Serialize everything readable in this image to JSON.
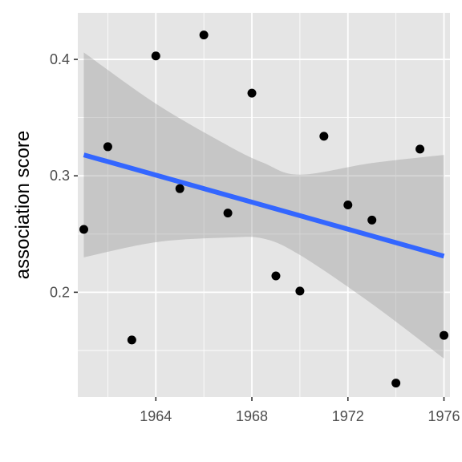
{
  "chart_data": {
    "type": "scatter",
    "title": "",
    "xlabel": "",
    "ylabel": "association score",
    "xlim": [
      1960.75,
      1976.25
    ],
    "ylim": [
      0.11,
      0.44
    ],
    "x_ticks": [
      1964,
      1968,
      1972,
      1976
    ],
    "x_tick_labels": [
      "1964",
      "1968",
      "1972",
      "1976"
    ],
    "y_ticks": [
      0.2,
      0.3,
      0.4
    ],
    "y_tick_labels": [
      "0.2",
      "0.3",
      "0.4"
    ],
    "grid": true,
    "points": [
      {
        "x": 1961,
        "y": 0.254
      },
      {
        "x": 1962,
        "y": 0.325
      },
      {
        "x": 1963,
        "y": 0.159
      },
      {
        "x": 1964,
        "y": 0.403
      },
      {
        "x": 1965,
        "y": 0.289
      },
      {
        "x": 1966,
        "y": 0.421
      },
      {
        "x": 1967,
        "y": 0.268
      },
      {
        "x": 1968,
        "y": 0.371
      },
      {
        "x": 1969,
        "y": 0.214
      },
      {
        "x": 1970,
        "y": 0.201
      },
      {
        "x": 1971,
        "y": 0.334
      },
      {
        "x": 1972,
        "y": 0.275
      },
      {
        "x": 1973,
        "y": 0.262
      },
      {
        "x": 1974,
        "y": 0.122
      },
      {
        "x": 1975,
        "y": 0.323
      },
      {
        "x": 1976,
        "y": 0.163
      }
    ],
    "trend_line": {
      "x": [
        1961,
        1976
      ],
      "y": [
        0.318,
        0.231
      ]
    },
    "confidence_band": [
      {
        "x": 1961,
        "lower": 0.23,
        "upper": 0.406
      },
      {
        "x": 1964,
        "lower": 0.243,
        "upper": 0.362
      },
      {
        "x": 1967,
        "lower": 0.247,
        "upper": 0.326
      },
      {
        "x": 1968.5,
        "lower": 0.246,
        "upper": 0.311
      },
      {
        "x": 1970,
        "lower": 0.232,
        "upper": 0.301
      },
      {
        "x": 1973,
        "lower": 0.19,
        "upper": 0.311
      },
      {
        "x": 1976,
        "lower": 0.143,
        "upper": 0.318
      }
    ],
    "colors": {
      "panel_bg": "#e5e5e5",
      "grid": "#ffffff",
      "points": "#000000",
      "trend_line": "#3366ff",
      "confidence_band": "#999999"
    }
  }
}
